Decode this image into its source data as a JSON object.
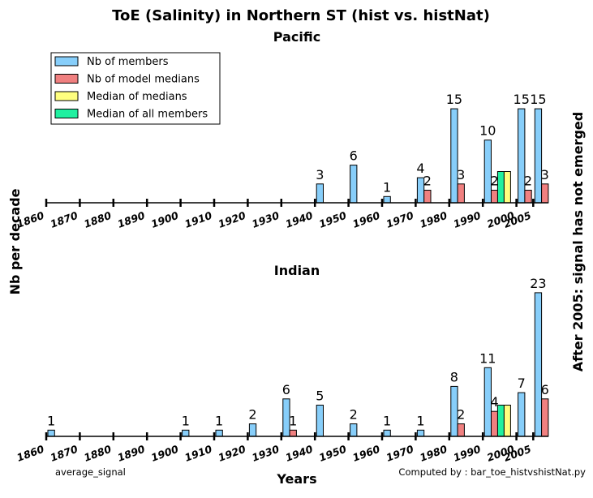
{
  "figure": {
    "title": "ToE (Salinity) in Northern ST (hist vs. histNat)",
    "ylabel_left": "Nb per decade",
    "ylabel_right": "After 2005: signal has not emerged",
    "xlabel": "Years",
    "footer_left": "average_signal",
    "footer_right": "Computed by : bar_toe_histvshistNat.py"
  },
  "legend": {
    "placement": "upper-left of Pacific panel",
    "entries": [
      {
        "label": "Nb of members",
        "color": "#87cefa"
      },
      {
        "label": "Nb of model medians",
        "color": "#f08080"
      },
      {
        "label": "Median of medians",
        "color": "#ffff7f"
      },
      {
        "label": "Median of all members",
        "color": "#20f0a0"
      }
    ]
  },
  "chart_data": [
    {
      "type": "bar",
      "title": "Pacific",
      "x_ticks": [
        "1860",
        "1870",
        "1880",
        "1890",
        "1900",
        "1910",
        "1920",
        "1930",
        "1940",
        "1950",
        "1960",
        "1970",
        "1980",
        "1990",
        "2000",
        "2005"
      ],
      "xlim": [
        1860,
        2005
      ],
      "series": [
        {
          "name": "Nb of members",
          "color": "#87cefa",
          "points": [
            {
              "x": 1940,
              "v": 3
            },
            {
              "x": 1950,
              "v": 6
            },
            {
              "x": 1960,
              "v": 1
            },
            {
              "x": 1970,
              "v": 4
            },
            {
              "x": 1980,
              "v": 15
            },
            {
              "x": 1990,
              "v": 10
            },
            {
              "x": 2000,
              "v": 15
            },
            {
              "x": 2005,
              "v": 15
            }
          ]
        },
        {
          "name": "Nb of model medians",
          "color": "#f08080",
          "points": [
            {
              "x": 1970,
              "v": 2
            },
            {
              "x": 1980,
              "v": 3
            },
            {
              "x": 1990,
              "v": 2
            },
            {
              "x": 2000,
              "v": 2
            },
            {
              "x": 2005,
              "v": 3
            }
          ]
        }
      ],
      "median_of_all_members": 1995,
      "median_of_medians": 1996,
      "data_labels": [
        {
          "text": "3",
          "x": 1940,
          "series": 0,
          "v": 3
        },
        {
          "text": "6",
          "x": 1950,
          "series": 0,
          "v": 6
        },
        {
          "text": "1",
          "x": 1960,
          "series": 0,
          "v": 1
        },
        {
          "text": "4",
          "x": 1970,
          "series": 0,
          "v": 4
        },
        {
          "text": "2",
          "x": 1970,
          "series": 1,
          "v": 2
        },
        {
          "text": "15",
          "x": 1980,
          "series": 0,
          "v": 15
        },
        {
          "text": "3",
          "x": 1980,
          "series": 1,
          "v": 3
        },
        {
          "text": "10",
          "x": 1990,
          "series": 0,
          "v": 10
        },
        {
          "text": "2",
          "x": 1990,
          "series": 1,
          "v": 2
        },
        {
          "text": "15",
          "x": 2000,
          "series": 0,
          "v": 15
        },
        {
          "text": "2",
          "x": 2000,
          "series": 1,
          "v": 2
        },
        {
          "text": "15",
          "x": 2005,
          "series": 0,
          "v": 15
        },
        {
          "text": "3",
          "x": 2005,
          "series": 1,
          "v": 3
        }
      ]
    },
    {
      "type": "bar",
      "title": "Indian",
      "x_ticks": [
        "1860",
        "1870",
        "1880",
        "1890",
        "1900",
        "1910",
        "1920",
        "1930",
        "1940",
        "1950",
        "1960",
        "1970",
        "1980",
        "1990",
        "2000",
        "2005"
      ],
      "xlim": [
        1860,
        2005
      ],
      "series": [
        {
          "name": "Nb of members",
          "color": "#87cefa",
          "points": [
            {
              "x": 1860,
              "v": 1
            },
            {
              "x": 1900,
              "v": 1
            },
            {
              "x": 1910,
              "v": 1
            },
            {
              "x": 1920,
              "v": 2
            },
            {
              "x": 1930,
              "v": 6
            },
            {
              "x": 1940,
              "v": 5
            },
            {
              "x": 1950,
              "v": 2
            },
            {
              "x": 1960,
              "v": 1
            },
            {
              "x": 1970,
              "v": 1
            },
            {
              "x": 1980,
              "v": 8
            },
            {
              "x": 1990,
              "v": 11
            },
            {
              "x": 2000,
              "v": 7
            },
            {
              "x": 2005,
              "v": 23
            }
          ]
        },
        {
          "name": "Nb of model medians",
          "color": "#f08080",
          "points": [
            {
              "x": 1930,
              "v": 1
            },
            {
              "x": 1980,
              "v": 2
            },
            {
              "x": 1990,
              "v": 4
            },
            {
              "x": 2005,
              "v": 6
            }
          ]
        }
      ],
      "median_of_all_members": 1995,
      "median_of_medians": 1996,
      "data_labels": [
        {
          "text": "1",
          "x": 1860,
          "series": 0,
          "v": 1
        },
        {
          "text": "1",
          "x": 1900,
          "series": 0,
          "v": 1
        },
        {
          "text": "1",
          "x": 1910,
          "series": 0,
          "v": 1
        },
        {
          "text": "2",
          "x": 1920,
          "series": 0,
          "v": 2
        },
        {
          "text": "6",
          "x": 1930,
          "series": 0,
          "v": 6
        },
        {
          "text": "1",
          "x": 1930,
          "series": 1,
          "v": 1
        },
        {
          "text": "5",
          "x": 1940,
          "series": 0,
          "v": 5
        },
        {
          "text": "2",
          "x": 1950,
          "series": 0,
          "v": 2
        },
        {
          "text": "1",
          "x": 1960,
          "series": 0,
          "v": 1
        },
        {
          "text": "1",
          "x": 1970,
          "series": 0,
          "v": 1
        },
        {
          "text": "8",
          "x": 1980,
          "series": 0,
          "v": 8
        },
        {
          "text": "2",
          "x": 1980,
          "series": 1,
          "v": 2
        },
        {
          "text": "11",
          "x": 1990,
          "series": 0,
          "v": 11
        },
        {
          "text": "4",
          "x": 1990,
          "series": 1,
          "v": 4
        },
        {
          "text": "7",
          "x": 2000,
          "series": 0,
          "v": 7
        },
        {
          "text": "23",
          "x": 2005,
          "series": 0,
          "v": 23
        },
        {
          "text": "6",
          "x": 2005,
          "series": 1,
          "v": 6
        }
      ]
    }
  ]
}
